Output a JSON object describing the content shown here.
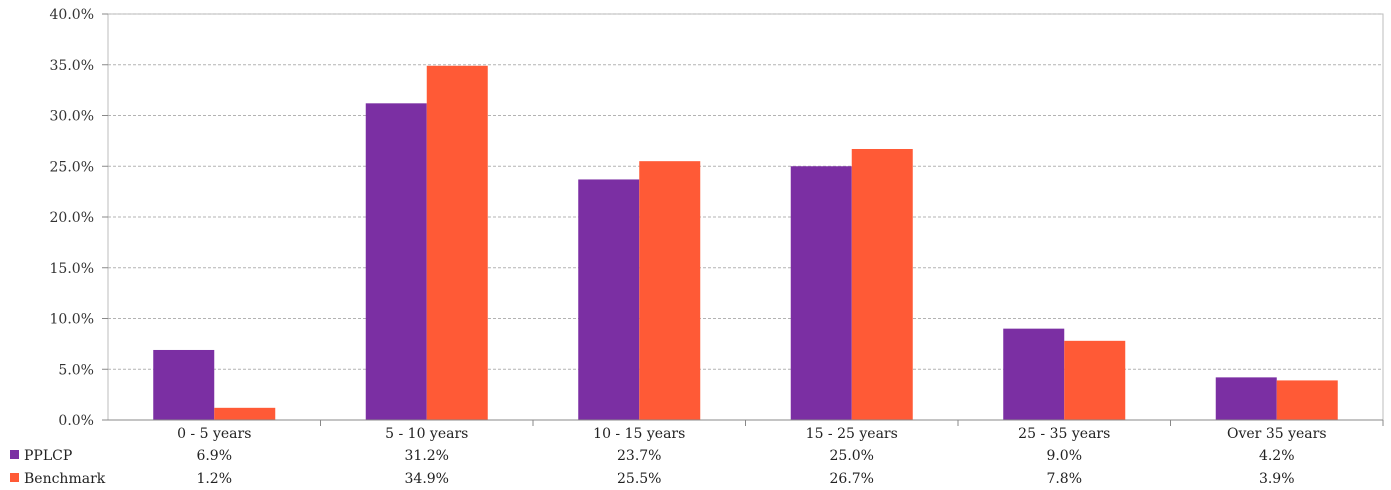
{
  "chart_data": {
    "type": "bar",
    "categories": [
      "0 - 5 years",
      "5 - 10 years",
      "10 - 15 years",
      "15 - 25 years",
      "25 - 35 years",
      "Over 35 years"
    ],
    "series": [
      {
        "name": "PPLCP",
        "color": "#7b2fa3",
        "values": [
          6.9,
          31.2,
          23.7,
          25.0,
          9.0,
          4.2
        ],
        "labels": [
          "6.9%",
          "31.2%",
          "23.7%",
          "25.0%",
          "9.0%",
          "4.2%"
        ]
      },
      {
        "name": "Benchmark",
        "color": "#ff5a36",
        "values": [
          1.2,
          34.9,
          25.5,
          26.7,
          7.8,
          3.9
        ],
        "labels": [
          "1.2%",
          "34.9%",
          "25.5%",
          "26.7%",
          "7.8%",
          "3.9%"
        ]
      }
    ],
    "y_ticks": [
      "0.0%",
      "5.0%",
      "10.0%",
      "15.0%",
      "20.0%",
      "25.0%",
      "30.0%",
      "35.0%",
      "40.0%"
    ],
    "ylim": [
      0,
      40
    ],
    "grid": true,
    "legend": "data-table-left"
  }
}
